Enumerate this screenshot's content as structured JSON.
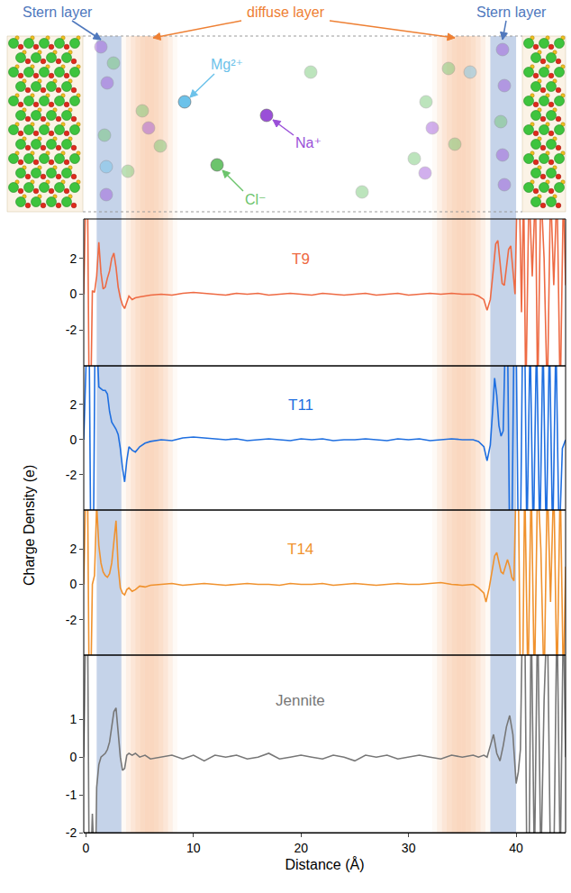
{
  "schematic": {
    "labels": {
      "stern_layer": {
        "text": "Stern layer",
        "color": "#4f78bd"
      },
      "diffuse_layer": {
        "text": "diffuse layer",
        "color": "#ee8034"
      }
    },
    "ions": [
      {
        "label": "Mg²⁺",
        "color": "#6cc2ea"
      },
      {
        "label": "Na⁺",
        "color": "#9a4fd8"
      },
      {
        "label": "Cl⁻",
        "color": "#6cc46c"
      }
    ]
  },
  "chart_data": {
    "type": "line",
    "x_label": "Distance (Å)",
    "y_label": "Charge Density (e)",
    "xlim": [
      -0.2,
      44.6
    ],
    "xticks": [
      0,
      10,
      20,
      30,
      40
    ],
    "grid": false,
    "regions": {
      "stern_layer": [
        [
          1.0,
          3.3
        ],
        [
          37.6,
          40.0
        ]
      ],
      "diffuse_layer": [
        [
          3.3,
          8.5
        ],
        [
          32.2,
          37.6
        ]
      ]
    },
    "series": [
      {
        "name": "T9",
        "color": "#ee6a43",
        "ylim": [
          -4,
          4.2
        ],
        "yticks": [
          -2,
          0,
          2
        ],
        "x": [
          -0.2,
          0.0,
          0.15,
          0.3,
          0.45,
          0.6,
          0.8,
          1.0,
          1.2,
          1.4,
          1.6,
          1.8,
          2.0,
          2.2,
          2.4,
          2.6,
          2.8,
          3.0,
          3.2,
          3.4,
          3.6,
          3.8,
          4.0,
          4.3,
          4.6,
          5.0,
          5.5,
          6,
          7,
          8,
          9,
          10,
          11,
          12,
          13,
          14,
          15,
          16,
          17,
          18,
          19,
          20,
          21,
          22,
          23,
          24,
          25,
          26,
          27,
          28,
          29,
          30,
          31,
          32,
          33,
          34,
          35,
          36,
          36.5,
          37.0,
          37.3,
          37.6,
          37.9,
          38.1,
          38.3,
          38.5,
          38.7,
          38.9,
          39.1,
          39.3,
          39.5,
          39.7,
          39.9,
          40.1,
          40.3,
          40.5,
          40.7,
          40.9,
          41.2,
          41.5,
          41.8,
          42.0,
          42.3,
          42.6,
          42.9,
          43.2,
          43.5,
          43.8,
          44.1,
          44.4,
          44.6
        ],
        "values": [
          0,
          6,
          6,
          -6,
          -6,
          0.2,
          0.1,
          1.0,
          2.9,
          1.2,
          0.3,
          0.4,
          0.9,
          1.3,
          2.0,
          2.3,
          1.5,
          0.4,
          -0.2,
          -0.6,
          -0.8,
          -0.4,
          -0.1,
          -0.3,
          -0.2,
          -0.15,
          -0.1,
          -0.05,
          0.0,
          -0.05,
          0.05,
          0.1,
          0.05,
          0.0,
          -0.05,
          0.05,
          0.0,
          0.05,
          -0.05,
          0.0,
          0.05,
          0.0,
          -0.05,
          0.05,
          0.0,
          -0.05,
          0.0,
          0.05,
          -0.05,
          0.0,
          0.05,
          -0.05,
          0.0,
          0.05,
          0.0,
          0.05,
          0.0,
          0.0,
          -0.1,
          -0.3,
          -0.9,
          -0.3,
          1.5,
          2.8,
          3.0,
          1.8,
          0.6,
          0.5,
          1.4,
          2.5,
          2.7,
          1.2,
          0.0,
          6,
          6,
          -1,
          6,
          -6,
          6,
          1,
          6,
          -6,
          6,
          2,
          -6,
          6,
          0.5,
          6,
          -6,
          6,
          0.5
        ]
      },
      {
        "name": "T11",
        "color": "#1f6fe0",
        "ylim": [
          -4,
          4.2
        ],
        "yticks": [
          -2,
          0,
          2
        ],
        "x": [
          -0.2,
          0.1,
          0.3,
          0.45,
          0.7,
          0.85,
          1.0,
          1.2,
          1.4,
          1.6,
          1.8,
          2.0,
          2.2,
          2.4,
          2.6,
          2.8,
          3.0,
          3.2,
          3.4,
          3.6,
          3.8,
          4.0,
          4.3,
          4.6,
          5.0,
          5.5,
          6,
          7,
          8,
          9,
          10,
          11,
          12,
          13,
          14,
          15,
          16,
          17,
          18,
          19,
          20,
          21,
          22,
          23,
          24,
          25,
          26,
          27,
          28,
          29,
          30,
          31,
          32,
          33,
          34,
          35,
          36,
          36.5,
          37.0,
          37.3,
          37.6,
          37.8,
          38.0,
          38.2,
          38.4,
          38.6,
          38.8,
          39.0,
          39.2,
          39.4,
          39.6,
          39.8,
          40.0,
          40.2,
          40.4,
          40.6,
          40.8,
          41.0,
          41.3,
          41.6,
          41.9,
          42.2,
          42.5,
          42.8,
          43.1,
          43.4,
          43.7,
          44.0,
          44.3,
          44.6
        ],
        "values": [
          0,
          6,
          6,
          -6,
          -6,
          6,
          6,
          3.0,
          2.9,
          2.8,
          2.8,
          2.6,
          1.6,
          1.0,
          0.8,
          0.6,
          0.3,
          -0.5,
          -1.6,
          -2.4,
          -1.2,
          -0.4,
          -0.6,
          -0.7,
          -0.4,
          -0.2,
          -0.1,
          0.0,
          -0.05,
          0.1,
          0.15,
          0.1,
          0.05,
          0.0,
          0.05,
          -0.05,
          0.0,
          0.05,
          0.0,
          -0.05,
          0.05,
          0.0,
          0.05,
          -0.05,
          0.0,
          0.0,
          0.05,
          0.0,
          -0.05,
          0.05,
          0.0,
          0.05,
          -0.05,
          0.0,
          0.05,
          0.0,
          0.0,
          -0.1,
          -0.4,
          -1.2,
          -0.3,
          1.5,
          3.5,
          2.5,
          0.8,
          0.2,
          0.5,
          6,
          6,
          -6,
          -6,
          6,
          6,
          -6,
          -6,
          6,
          6,
          -6,
          6,
          -6,
          6,
          -6,
          6,
          -6,
          6,
          -6,
          6,
          -6,
          -0.5,
          0
        ]
      },
      {
        "name": "T14",
        "color": "#f0922e",
        "ylim": [
          -4,
          4.2
        ],
        "yticks": [
          -2,
          0,
          2
        ],
        "x": [
          -0.2,
          0.0,
          0.15,
          0.3,
          0.45,
          0.6,
          0.8,
          1.0,
          1.2,
          1.4,
          1.6,
          1.8,
          2.0,
          2.2,
          2.4,
          2.6,
          2.8,
          3.0,
          3.2,
          3.4,
          3.6,
          3.8,
          4.0,
          4.3,
          4.6,
          5.0,
          5.5,
          6,
          7,
          8,
          9,
          10,
          11,
          12,
          13,
          14,
          15,
          16,
          17,
          18,
          19,
          20,
          21,
          22,
          23,
          24,
          25,
          26,
          27,
          28,
          29,
          30,
          31,
          32,
          33,
          34,
          35,
          36,
          36.5,
          37.0,
          37.2,
          37.5,
          37.8,
          38.0,
          38.2,
          38.4,
          38.6,
          38.8,
          39.0,
          39.2,
          39.4,
          39.6,
          39.8,
          40.0,
          40.2,
          40.4,
          40.6,
          40.8,
          41.1,
          41.4,
          41.7,
          42.0,
          42.3,
          42.6,
          42.9,
          43.2,
          43.5,
          43.8,
          44.1,
          44.4,
          44.6
        ],
        "values": [
          0,
          6,
          6,
          -6,
          -6,
          0,
          0.5,
          4.5,
          2.2,
          1.2,
          0.7,
          0.5,
          0.4,
          0.6,
          1.2,
          2.6,
          3.6,
          1.0,
          -0.2,
          -0.5,
          -0.6,
          -0.3,
          -0.2,
          -0.4,
          -0.3,
          -0.1,
          -0.15,
          -0.05,
          0.0,
          0.05,
          -0.05,
          0.0,
          0.05,
          0.0,
          -0.05,
          0.0,
          0.05,
          0.0,
          0.0,
          -0.05,
          0.05,
          0.0,
          0.0,
          0.05,
          -0.05,
          0.0,
          0.05,
          0.0,
          -0.05,
          0.0,
          0.05,
          0.0,
          0.0,
          0.05,
          0.1,
          0.0,
          -0.05,
          0.0,
          -0.2,
          -0.5,
          -1.0,
          -0.2,
          0.9,
          1.6,
          1.8,
          1.2,
          0.7,
          0.6,
          1.0,
          1.4,
          1.0,
          0.4,
          0.2,
          6,
          6,
          -6,
          -6,
          6,
          -6,
          6,
          -6,
          6,
          2,
          -6,
          6,
          -1,
          6,
          -6,
          6,
          -6,
          1
        ]
      },
      {
        "name": "Jennite",
        "color": "#777777",
        "ylim": [
          -2,
          2.7
        ],
        "yticks": [
          -2,
          -1,
          0,
          1
        ],
        "x": [
          -0.2,
          0.0,
          0.15,
          0.3,
          0.45,
          0.6,
          0.8,
          0.9,
          1.0,
          1.2,
          1.4,
          1.6,
          1.8,
          2.0,
          2.2,
          2.4,
          2.6,
          2.8,
          3.0,
          3.2,
          3.4,
          3.6,
          3.8,
          4.0,
          4.3,
          4.6,
          5.0,
          5.5,
          6,
          7,
          8,
          9,
          10,
          11,
          12,
          13,
          14,
          15,
          16,
          17,
          18,
          19,
          20,
          21,
          22,
          23,
          24,
          25,
          26,
          27,
          28,
          29,
          30,
          31,
          32,
          33,
          34,
          35,
          36,
          36.5,
          37.0,
          37.3,
          37.6,
          37.9,
          38.2,
          38.5,
          38.8,
          39.1,
          39.4,
          39.7,
          40.0,
          40.2,
          40.4,
          40.6,
          40.8,
          41.0,
          41.2,
          41.4,
          41.7,
          42.0,
          42.3,
          42.6,
          42.9,
          43.2,
          43.5,
          43.8,
          44.1,
          44.4,
          44.6
        ],
        "values": [
          0,
          4,
          4,
          -3,
          -3,
          -1.5,
          -3,
          -3,
          -0.8,
          -0.2,
          0.0,
          0.05,
          0.1,
          0.2,
          0.4,
          0.8,
          1.2,
          1.3,
          0.6,
          0.0,
          -0.35,
          -0.3,
          0.05,
          0.1,
          0.05,
          0.1,
          0.0,
          0.05,
          -0.05,
          0.0,
          0.05,
          -0.05,
          0.05,
          -0.1,
          0.05,
          0.0,
          0.05,
          -0.05,
          0.0,
          0.1,
          -0.05,
          0.0,
          0.05,
          0.0,
          -0.05,
          0.05,
          0.0,
          -0.1,
          0.05,
          0.0,
          0.05,
          -0.05,
          0.0,
          0.05,
          0.0,
          -0.05,
          0.05,
          0.0,
          0.05,
          0.0,
          0.05,
          0.0,
          0.3,
          0.6,
          0.1,
          -0.1,
          0.3,
          0.8,
          1.1,
          0.6,
          -0.7,
          -0.4,
          0.2,
          4,
          4,
          -3,
          -3,
          4,
          -3,
          4,
          -3,
          1.5,
          4,
          -3,
          -3,
          4,
          -3,
          4,
          0
        ]
      }
    ]
  }
}
